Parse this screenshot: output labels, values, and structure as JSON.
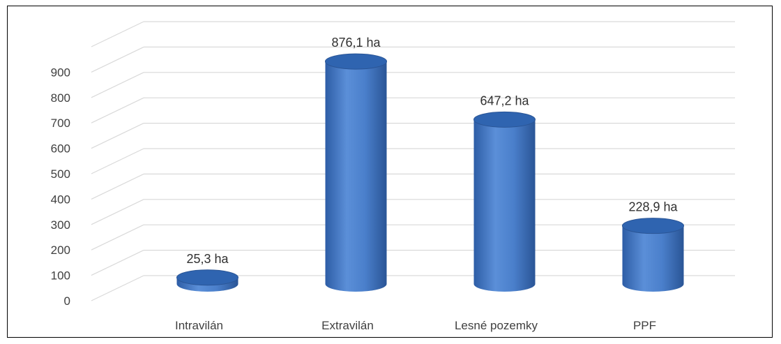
{
  "chart_data": {
    "type": "bar",
    "style": "3d-cylinder",
    "title": "",
    "xlabel": "",
    "ylabel": "",
    "categories": [
      "Intravilán",
      "Extravilán",
      "Lesné pozemky",
      "PPF"
    ],
    "values": [
      25.3,
      876.1,
      647.2,
      228.9
    ],
    "data_labels": [
      "25,3 ha",
      "876,1 ha",
      "647,2 ha",
      "228,9 ha"
    ],
    "y_ticks": [
      "0",
      "100",
      "200",
      "300",
      "400",
      "500",
      "600",
      "700",
      "800",
      "900"
    ],
    "ylim": [
      0,
      1000
    ],
    "grid": true,
    "legend": "none",
    "colors": {
      "bar_light": "#5b8fd8",
      "bar_mid": "#3f74c2",
      "bar_dark": "#2a5596",
      "bar_top": "#2f64b0",
      "grid": "#d9d9d9",
      "text": "#404040"
    }
  }
}
